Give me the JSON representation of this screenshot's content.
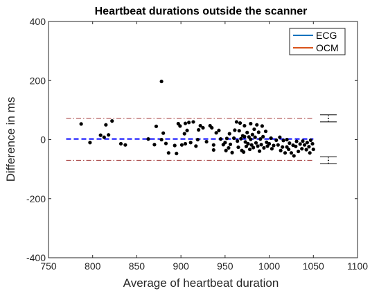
{
  "chart_data": {
    "type": "scatter",
    "title": "Heartbeat durations outside the scanner",
    "xlabel": "Average of heartbeat duration",
    "ylabel": "Difference in ms",
    "xlim": [
      750,
      1100
    ],
    "ylim": [
      -400,
      400
    ],
    "xticks": [
      750,
      800,
      850,
      900,
      950,
      1000,
      1050,
      1100
    ],
    "yticks": [
      -400,
      -200,
      0,
      200,
      400
    ],
    "xtick_labels": [
      "750",
      "800",
      "850",
      "900",
      "950",
      "1000",
      "1050",
      "1100"
    ],
    "ytick_labels": [
      "-400",
      "-200",
      "0",
      "200",
      "400"
    ],
    "grid": false,
    "legend": {
      "placement": "top-right",
      "entries": [
        {
          "label": "ECG",
          "color": "#0072BD"
        },
        {
          "label": "OCM",
          "color": "#D95319"
        }
      ]
    },
    "reference_lines": {
      "mean": 2,
      "upper_limit": 72,
      "lower_limit": -70,
      "x_range": [
        770,
        1050
      ],
      "mean_color": "#0000ff",
      "limit_color": "#a03030"
    },
    "error_bars": {
      "x": 1067,
      "upper": {
        "center": 72,
        "low": 60,
        "high": 84
      },
      "lower": {
        "center": -70,
        "low": -82,
        "high": -58
      }
    },
    "marker_color": "#000000",
    "points": [
      [
        787,
        53
      ],
      [
        797,
        -10
      ],
      [
        809,
        15
      ],
      [
        813,
        8
      ],
      [
        815,
        50
      ],
      [
        818,
        16
      ],
      [
        822,
        63
      ],
      [
        832,
        -14
      ],
      [
        837,
        -18
      ],
      [
        863,
        2
      ],
      [
        870,
        -17
      ],
      [
        872,
        45
      ],
      [
        878,
        197
      ],
      [
        878,
        0
      ],
      [
        880,
        22
      ],
      [
        883,
        -13
      ],
      [
        886,
        -45
      ],
      [
        893,
        -20
      ],
      [
        895,
        -47
      ],
      [
        897,
        54
      ],
      [
        899,
        46
      ],
      [
        901,
        -18
      ],
      [
        904,
        20
      ],
      [
        905,
        55
      ],
      [
        905,
        -14
      ],
      [
        907,
        31
      ],
      [
        909,
        58
      ],
      [
        911,
        -10
      ],
      [
        914,
        60
      ],
      [
        917,
        -22
      ],
      [
        919,
        0
      ],
      [
        920,
        33
      ],
      [
        922,
        47
      ],
      [
        925,
        40
      ],
      [
        929,
        -7
      ],
      [
        933,
        47
      ],
      [
        935,
        40
      ],
      [
        937,
        -18
      ],
      [
        937,
        -35
      ],
      [
        940,
        23
      ],
      [
        943,
        31
      ],
      [
        945,
        2
      ],
      [
        948,
        -17
      ],
      [
        950,
        -10
      ],
      [
        951,
        -37
      ],
      [
        952,
        4
      ],
      [
        954,
        -28
      ],
      [
        955,
        20
      ],
      [
        956,
        -16
      ],
      [
        958,
        -44
      ],
      [
        960,
        5
      ],
      [
        961,
        32
      ],
      [
        963,
        60
      ],
      [
        964,
        -5
      ],
      [
        965,
        -26
      ],
      [
        966,
        30
      ],
      [
        967,
        56
      ],
      [
        968,
        3
      ],
      [
        969,
        -37
      ],
      [
        970,
        13
      ],
      [
        971,
        -42
      ],
      [
        972,
        47
      ],
      [
        972,
        10
      ],
      [
        973,
        -8
      ],
      [
        974,
        -23
      ],
      [
        975,
        24
      ],
      [
        976,
        -14
      ],
      [
        977,
        9
      ],
      [
        978,
        -33
      ],
      [
        979,
        54
      ],
      [
        979,
        1
      ],
      [
        980,
        -18
      ],
      [
        981,
        17
      ],
      [
        982,
        -27
      ],
      [
        983,
        35
      ],
      [
        984,
        8
      ],
      [
        985,
        -11
      ],
      [
        986,
        50
      ],
      [
        987,
        -22
      ],
      [
        988,
        25
      ],
      [
        989,
        -39
      ],
      [
        990,
        2
      ],
      [
        991,
        -17
      ],
      [
        992,
        46
      ],
      [
        993,
        10
      ],
      [
        994,
        -28
      ],
      [
        996,
        28
      ],
      [
        997,
        -9
      ],
      [
        998,
        -22
      ],
      [
        1000,
        -14
      ],
      [
        1002,
        5
      ],
      [
        1003,
        -31
      ],
      [
        1005,
        -20
      ],
      [
        1008,
        -2
      ],
      [
        1010,
        -18
      ],
      [
        1012,
        8
      ],
      [
        1013,
        -37
      ],
      [
        1015,
        -25
      ],
      [
        1016,
        -3
      ],
      [
        1018,
        -45
      ],
      [
        1020,
        0
      ],
      [
        1020,
        -25
      ],
      [
        1022,
        -33
      ],
      [
        1023,
        -12
      ],
      [
        1025,
        -45
      ],
      [
        1027,
        -19
      ],
      [
        1028,
        -55
      ],
      [
        1030,
        -23
      ],
      [
        1031,
        -6
      ],
      [
        1033,
        -40
      ],
      [
        1035,
        -15
      ],
      [
        1037,
        -31
      ],
      [
        1038,
        -5
      ],
      [
        1040,
        -18
      ],
      [
        1042,
        -34
      ],
      [
        1043,
        -10
      ],
      [
        1045,
        -24
      ],
      [
        1046,
        -45
      ],
      [
        1047,
        -2
      ],
      [
        1049,
        -14
      ],
      [
        1050,
        -33
      ]
    ]
  }
}
